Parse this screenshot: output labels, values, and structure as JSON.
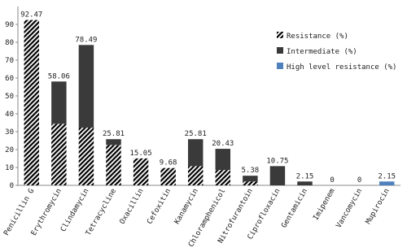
{
  "chart_data": {
    "type": "stacked-bar",
    "categories": [
      "Penicillin G",
      "Erythromycin",
      "Clindamycin",
      "Tetracycline",
      "Oxacillin",
      "Cefoxitin",
      "Kanamycin",
      "Chloramphenicol",
      "Nitrofurantoin",
      "Ciprofloxacin",
      "Gentamicin",
      "Imipenem",
      "Vancomycin",
      "Mupirocin"
    ],
    "series": [
      {
        "name": "Resistance (%)",
        "color": "#000000",
        "hatch": true,
        "values": [
          92.47,
          34.41,
          32.26,
          22.58,
          15.05,
          9.68,
          10.75,
          8.6,
          2.15,
          0,
          0,
          0,
          0,
          0
        ]
      },
      {
        "name": "Intermediate (%)",
        "color": "#3a3a3a",
        "hatch": false,
        "values": [
          0,
          23.65,
          46.23,
          3.23,
          0,
          0,
          15.06,
          11.83,
          3.23,
          10.75,
          2.15,
          0,
          0,
          0
        ]
      },
      {
        "name": "High level resistance (%)",
        "color": "#4f81bd",
        "hatch": false,
        "values": [
          0,
          0,
          0,
          0,
          0,
          0,
          0,
          0,
          0,
          0,
          0,
          0,
          0,
          2.15
        ]
      }
    ],
    "totals": [
      92.47,
      58.06,
      78.49,
      25.81,
      15.05,
      9.68,
      25.81,
      20.43,
      5.38,
      10.75,
      2.15,
      0,
      0,
      2.15
    ],
    "ylim": [
      0,
      100
    ],
    "yticks": [
      0,
      10,
      20,
      30,
      40,
      50,
      60,
      70,
      80,
      90
    ],
    "grid": false,
    "legend": "upper-right"
  }
}
